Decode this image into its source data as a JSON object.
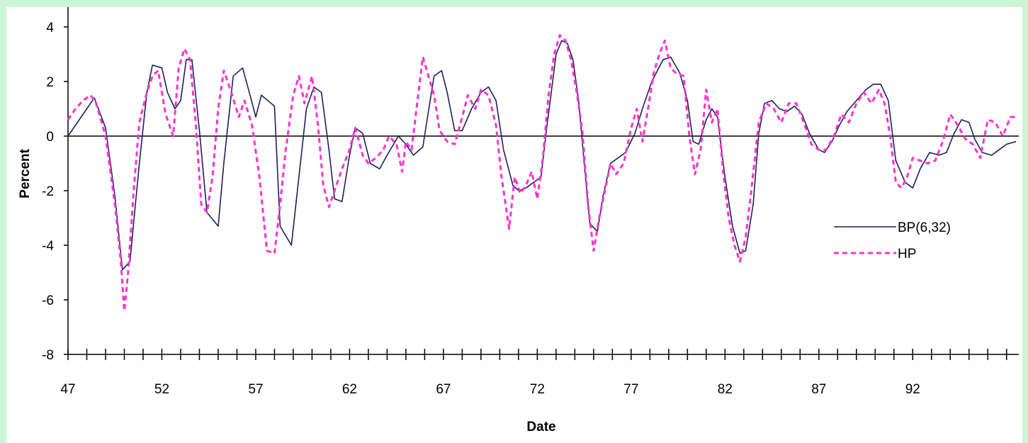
{
  "chart_data": {
    "type": "line",
    "title": "",
    "xlabel": "Date",
    "ylabel": "Percent",
    "xlim": [
      47,
      97.5
    ],
    "ylim": [
      -8,
      4
    ],
    "x_tick_labels": [
      "47",
      "52",
      "57",
      "62",
      "67",
      "72",
      "77",
      "82",
      "87",
      "92"
    ],
    "x_tick_values": [
      47,
      52,
      57,
      62,
      67,
      72,
      77,
      82,
      87,
      92
    ],
    "x_minor_ticks": [
      48,
      49,
      50,
      51,
      53,
      54,
      55,
      56,
      58,
      59,
      60,
      61,
      63,
      64,
      65,
      66,
      68,
      69,
      70,
      71,
      73,
      74,
      75,
      76,
      78,
      79,
      80,
      81,
      83,
      84,
      85,
      86,
      88,
      89,
      90,
      91,
      93,
      94,
      95,
      96,
      97
    ],
    "y_tick_labels": [
      "4",
      "2",
      "0",
      "-2",
      "-4",
      "-6",
      "-8"
    ],
    "y_tick_values": [
      4,
      2,
      0,
      -2,
      -4,
      -6,
      -8
    ],
    "zero_line": true,
    "legend_position": "right",
    "colors": {
      "BP(6,32)": "#1f1f5c",
      "HP": "#ff33cc"
    },
    "series": [
      {
        "name": "BP(6,32)",
        "style": "solid",
        "x": [
          47.0,
          48.0,
          48.4,
          49.0,
          49.5,
          49.9,
          50.3,
          50.8,
          51.2,
          51.5,
          52.0,
          52.3,
          52.7,
          53.0,
          53.3,
          53.6,
          54.0,
          54.4,
          55.0,
          55.3,
          55.8,
          56.3,
          56.7,
          57.0,
          57.3,
          58.0,
          58.3,
          58.9,
          59.3,
          59.7,
          60.1,
          60.5,
          60.9,
          61.2,
          61.6,
          62.0,
          62.3,
          62.7,
          63.1,
          63.6,
          64.0,
          64.6,
          65.0,
          65.4,
          65.9,
          66.2,
          66.5,
          66.9,
          67.2,
          67.6,
          68.0,
          68.5,
          69.0,
          69.4,
          69.8,
          70.2,
          70.7,
          71.0,
          71.4,
          71.8,
          72.2,
          72.5,
          72.8,
          73.0,
          73.3,
          73.6,
          73.9,
          74.2,
          74.5,
          74.8,
          75.2,
          75.5,
          75.9,
          76.3,
          76.7,
          77.2,
          77.6,
          78.1,
          78.7,
          79.1,
          79.6,
          80.0,
          80.3,
          80.6,
          81.0,
          81.3,
          81.6,
          82.0,
          82.4,
          82.8,
          83.1,
          83.5,
          83.8,
          84.1,
          84.5,
          84.9,
          85.3,
          85.7,
          86.1,
          86.5,
          87.0,
          87.3,
          87.7,
          88.1,
          88.5,
          89.0,
          89.5,
          89.9,
          90.3,
          90.7,
          91.1,
          91.6,
          92.0,
          92.4,
          92.9,
          93.4,
          93.8,
          94.2,
          94.6,
          95.0,
          95.3,
          95.7,
          96.2,
          96.6,
          97.0,
          97.5
        ],
        "y": [
          0.0,
          1.0,
          1.4,
          0.3,
          -2.2,
          -4.9,
          -4.6,
          -1.0,
          1.6,
          2.6,
          2.5,
          1.6,
          1.0,
          1.3,
          2.8,
          2.8,
          0.2,
          -2.8,
          -3.3,
          -1.0,
          2.2,
          2.5,
          1.5,
          0.7,
          1.5,
          1.1,
          -3.3,
          -4.0,
          -1.5,
          1.0,
          1.8,
          1.6,
          -0.5,
          -2.3,
          -2.4,
          -0.7,
          0.3,
          0.1,
          -1.0,
          -1.2,
          -0.7,
          0.0,
          -0.3,
          -0.7,
          -0.4,
          0.9,
          2.2,
          2.4,
          1.6,
          0.2,
          0.2,
          1.0,
          1.6,
          1.8,
          1.3,
          -0.5,
          -1.8,
          -2.0,
          -1.9,
          -1.7,
          -1.5,
          0.3,
          1.9,
          3.0,
          3.5,
          3.4,
          2.8,
          1.3,
          -1.0,
          -3.2,
          -3.5,
          -2.2,
          -1.0,
          -0.8,
          -0.6,
          0.1,
          1.0,
          2.0,
          2.8,
          2.9,
          2.3,
          1.3,
          -0.2,
          -0.3,
          0.6,
          1.0,
          0.7,
          -1.5,
          -3.3,
          -4.3,
          -4.2,
          -2.5,
          0.1,
          1.2,
          1.3,
          1.0,
          0.9,
          1.1,
          0.8,
          0.1,
          -0.5,
          -0.6,
          -0.2,
          0.4,
          0.9,
          1.3,
          1.7,
          1.9,
          1.9,
          1.3,
          -0.9,
          -1.7,
          -1.9,
          -1.2,
          -0.6,
          -0.7,
          -0.6,
          0.1,
          0.6,
          0.5,
          -0.1,
          -0.6,
          -0.7,
          -0.5,
          -0.3,
          -0.2
        ]
      },
      {
        "name": "HP",
        "style": "dashed",
        "x": [
          47.0,
          47.4,
          47.8,
          48.2,
          48.5,
          49.0,
          49.5,
          49.8,
          50.0,
          50.2,
          50.5,
          50.8,
          51.2,
          51.5,
          51.8,
          52.2,
          52.6,
          52.9,
          53.2,
          53.5,
          53.8,
          54.1,
          54.4,
          54.7,
          55.0,
          55.3,
          55.7,
          56.1,
          56.4,
          56.8,
          57.2,
          57.6,
          58.0,
          58.3,
          58.6,
          59.0,
          59.3,
          59.6,
          60.0,
          60.3,
          60.6,
          60.9,
          61.2,
          61.6,
          62.0,
          62.3,
          62.7,
          63.0,
          63.4,
          63.8,
          64.1,
          64.5,
          64.8,
          65.0,
          65.3,
          65.6,
          65.9,
          66.2,
          66.5,
          66.8,
          67.2,
          67.6,
          68.0,
          68.3,
          68.7,
          69.0,
          69.4,
          69.8,
          70.1,
          70.5,
          70.8,
          71.1,
          71.4,
          71.7,
          72.0,
          72.3,
          72.6,
          72.9,
          73.2,
          73.5,
          73.8,
          74.1,
          74.4,
          74.7,
          75.0,
          75.3,
          75.6,
          75.9,
          76.2,
          76.6,
          77.0,
          77.3,
          77.6,
          77.9,
          78.2,
          78.5,
          78.8,
          79.1,
          79.4,
          79.8,
          80.1,
          80.4,
          80.7,
          81.0,
          81.3,
          81.6,
          81.9,
          82.2,
          82.5,
          82.8,
          83.1,
          83.4,
          83.8,
          84.2,
          84.6,
          85.0,
          85.4,
          85.8,
          86.2,
          86.6,
          87.0,
          87.4,
          87.8,
          88.2,
          88.6,
          89.0,
          89.4,
          89.8,
          90.2,
          90.5,
          90.8,
          91.1,
          91.4,
          91.7,
          92.0,
          92.4,
          92.8,
          93.2,
          93.6,
          94.0,
          94.4,
          94.8,
          95.2,
          95.6,
          96.0,
          96.4,
          96.8,
          97.2,
          97.5
        ],
        "y": [
          0.6,
          1.0,
          1.3,
          1.5,
          1.2,
          0.0,
          -2.5,
          -4.5,
          -6.4,
          -5.0,
          -2.0,
          0.5,
          1.6,
          2.2,
          2.4,
          0.8,
          0.0,
          2.5,
          3.2,
          2.8,
          0.5,
          -2.5,
          -2.8,
          -1.5,
          1.0,
          2.4,
          1.6,
          0.7,
          1.3,
          0.4,
          -1.5,
          -4.2,
          -4.3,
          -2.5,
          -0.5,
          1.5,
          2.2,
          1.2,
          2.2,
          0.5,
          -1.8,
          -2.6,
          -2.0,
          -1.2,
          -0.5,
          0.3,
          -0.7,
          -1.0,
          -0.8,
          -0.5,
          0.0,
          -0.3,
          -1.3,
          -0.2,
          -0.5,
          1.2,
          2.9,
          2.2,
          1.5,
          0.2,
          -0.2,
          -0.3,
          0.7,
          1.5,
          1.0,
          1.7,
          1.5,
          0.4,
          -1.5,
          -3.4,
          -1.5,
          -2.1,
          -1.8,
          -1.3,
          -2.3,
          -0.8,
          1.5,
          3.0,
          3.7,
          3.5,
          2.8,
          1.6,
          0.2,
          -2.5,
          -4.2,
          -3.0,
          -2.0,
          -1.0,
          -1.4,
          -1.0,
          0.3,
          1.0,
          -0.2,
          1.0,
          2.3,
          3.0,
          3.5,
          2.5,
          2.3,
          2.2,
          0.0,
          -1.4,
          -0.5,
          1.7,
          0.5,
          1.0,
          -1.3,
          -3.0,
          -4.0,
          -4.6,
          -3.7,
          -2.0,
          0.5,
          1.2,
          1.0,
          0.5,
          1.2,
          1.2,
          0.5,
          -0.3,
          -0.5,
          -0.5,
          0.0,
          0.8,
          0.5,
          1.2,
          1.6,
          1.2,
          1.7,
          1.2,
          0.0,
          -1.7,
          -1.9,
          -1.5,
          -0.8,
          -0.9,
          -1.0,
          -0.9,
          -0.2,
          0.8,
          0.4,
          -0.1,
          -0.3,
          -0.8,
          0.6,
          0.5,
          0.0,
          0.7,
          0.7
        ]
      }
    ]
  }
}
